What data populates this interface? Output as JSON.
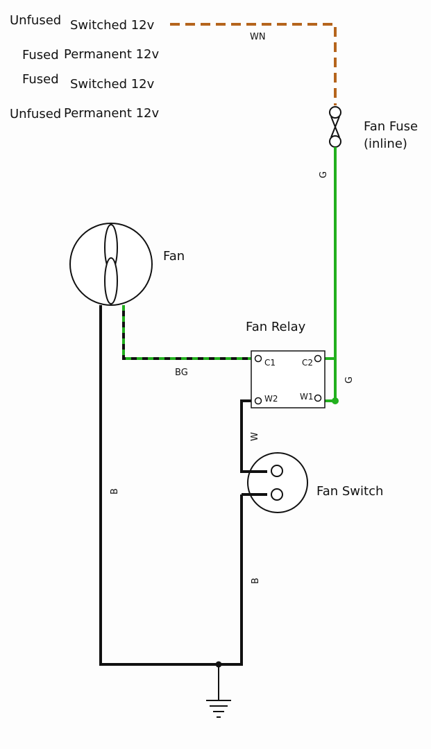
{
  "legend": {
    "row1": {
      "qualifier": "Unfused",
      "type": "Switched 12v"
    },
    "row2": {
      "qualifier": "Fused",
      "type": "Permanent 12v"
    },
    "row3": {
      "qualifier": "Fused",
      "type": "Switched 12v"
    },
    "row4": {
      "qualifier": "Unfused",
      "type": "Permanent 12v"
    }
  },
  "components": {
    "fuse": {
      "line1": "Fan Fuse",
      "line2": "(inline)"
    },
    "fan": {
      "label": "Fan"
    },
    "relay": {
      "label": "Fan Relay",
      "c1": "C1",
      "c2": "C2",
      "w1": "W1",
      "w2": "W2"
    },
    "switch": {
      "label": "Fan Switch"
    }
  },
  "wires": {
    "wn": "WN",
    "g_top": "G",
    "g_right": "G",
    "bg": "BG",
    "w": "W",
    "b_left": "B",
    "b_right": "B"
  },
  "colors": {
    "brown": "#b5651d",
    "green": "#22b01e",
    "black": "#111111",
    "white": "#ffffff"
  }
}
